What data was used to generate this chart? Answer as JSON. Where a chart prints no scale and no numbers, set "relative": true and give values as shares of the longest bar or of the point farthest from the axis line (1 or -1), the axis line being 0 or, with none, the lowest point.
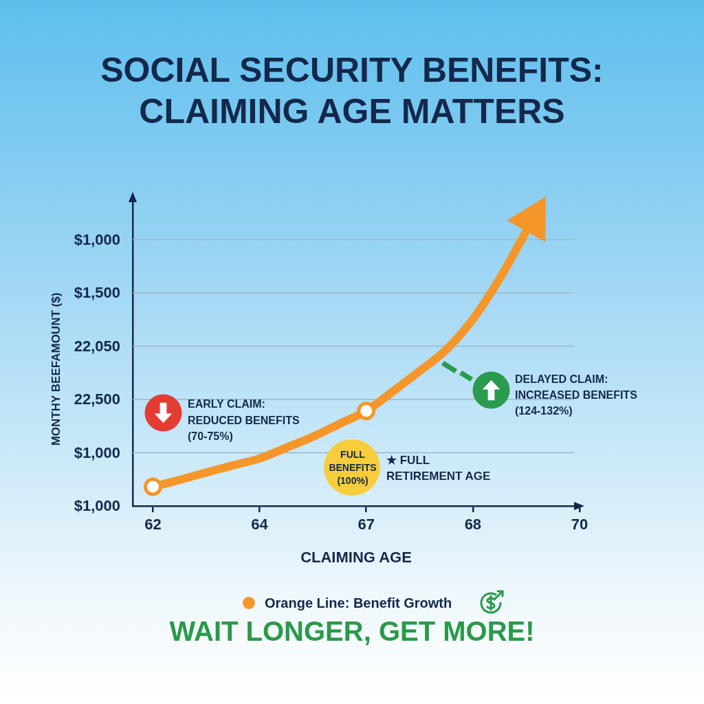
{
  "chart_data": {
    "type": "line",
    "title": "SOCIAL SECURITY BENEFITS: CLAIMING AGE MATTERS",
    "xlabel": "CLAIMING AGE",
    "categories": [
      "62",
      null,
      null,
      null,
      "64",
      null,
      null,
      null,
      "67",
      null,
      null,
      null,
      "68",
      null,
      null,
      null,
      "70"
    ],
    "relative": true,
    "grid": "y",
    "legend": "bottom",
    "series": [
      {
        "name": "Orange Line: Benefit Growth",
        "color": "#f5962a",
        "values": [
          0.07,
          0.095,
          0.122,
          0.148,
          0.173,
          0.212,
          0.252,
          0.299,
          0.346,
          0.417,
          0.491,
          0.569,
          0.68,
          0.827,
          1,
          null,
          null
        ]
      },
      {
        "type": "scatter",
        "marker": "circle",
        "color": "#f5962a",
        "values": [
          0.07,
          null,
          null,
          null,
          null,
          null,
          null,
          null,
          0.346,
          null,
          null,
          null,
          null,
          null,
          null,
          null,
          null
        ]
      }
    ],
    "annotations": [
      "$1,000",
      "$1,500",
      "22,050",
      "22,500",
      "$1,000",
      "$1,000",
      "MONTHY BEEFAMOUNT ($)",
      "EARLY CLAIM: REDUCED BENEFITS (70-75%)",
      "FULL BENEFITS (100%)",
      "★ FULL RETIREMENT AGE",
      "DELAYED CLAIM: INCREASED BENEFITS (124-132%)",
      "WAIT LONGER, GET MORE!"
    ]
  }
}
